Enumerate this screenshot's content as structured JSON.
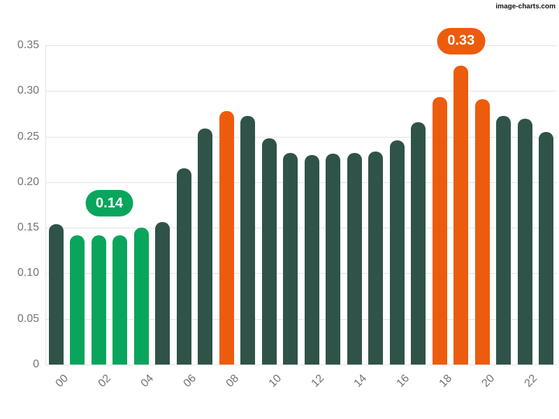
{
  "watermark": "image-charts.com",
  "chart_data": {
    "type": "bar",
    "title": "",
    "xlabel": "",
    "ylabel": "",
    "categories": [
      "00",
      "01",
      "02",
      "03",
      "04",
      "05",
      "06",
      "07",
      "08",
      "09",
      "10",
      "11",
      "12",
      "13",
      "14",
      "15",
      "16",
      "17",
      "18",
      "19",
      "20",
      "21",
      "22",
      "23"
    ],
    "values": [
      0.154,
      0.142,
      0.142,
      0.142,
      0.15,
      0.156,
      0.215,
      0.259,
      0.278,
      0.273,
      0.248,
      0.232,
      0.23,
      0.231,
      0.232,
      0.234,
      0.246,
      0.266,
      0.293,
      0.328,
      0.291,
      0.273,
      0.27,
      0.255
    ],
    "bar_colors": [
      "dark",
      "green",
      "green",
      "green",
      "green",
      "dark",
      "dark",
      "dark",
      "orange",
      "dark",
      "dark",
      "dark",
      "dark",
      "dark",
      "dark",
      "dark",
      "dark",
      "dark",
      "orange",
      "orange",
      "orange",
      "dark",
      "dark",
      "dark"
    ],
    "colors": {
      "dark": "#2f5349",
      "green": "#0aa55c",
      "orange": "#ed5c0c",
      "grid": "#e3e3e3",
      "tick_text": "#737373"
    },
    "ylim": [
      0,
      0.35
    ],
    "yticks": [
      0,
      0.05,
      0.1,
      0.15,
      0.2,
      0.25,
      0.3,
      0.35
    ],
    "ytick_labels": [
      "0",
      "0.05",
      "0.10",
      "0.15",
      "0.20",
      "0.25",
      "0.30",
      "0.35"
    ],
    "x_label_every": 2,
    "grid": true,
    "legend": false,
    "annotations": [
      {
        "text": "0.14",
        "center_index": 2.5,
        "anchor_value": 0.15,
        "color_key": "green"
      },
      {
        "text": "0.33",
        "center_index": 19.0,
        "anchor_value": 0.328,
        "color_key": "orange"
      }
    ]
  }
}
